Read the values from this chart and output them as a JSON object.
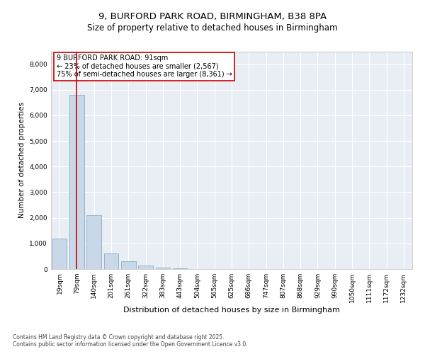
{
  "title_line1": "9, BURFORD PARK ROAD, BIRMINGHAM, B38 8PA",
  "title_line2": "Size of property relative to detached houses in Birmingham",
  "xlabel": "Distribution of detached houses by size in Birmingham",
  "ylabel": "Number of detached properties",
  "categories": [
    "19sqm",
    "79sqm",
    "140sqm",
    "201sqm",
    "261sqm",
    "322sqm",
    "383sqm",
    "443sqm",
    "504sqm",
    "565sqm",
    "625sqm",
    "686sqm",
    "747sqm",
    "807sqm",
    "868sqm",
    "929sqm",
    "990sqm",
    "1050sqm",
    "1111sqm",
    "1172sqm",
    "1232sqm"
  ],
  "values": [
    1200,
    6800,
    2100,
    600,
    300,
    130,
    60,
    30,
    10,
    5,
    0,
    0,
    0,
    0,
    0,
    0,
    0,
    0,
    0,
    0,
    0
  ],
  "bar_color": "#c8d8e8",
  "bar_edge_color": "#7aa0ba",
  "vline_x": 1,
  "vline_color": "#cc0000",
  "annotation_text": "9 BURFORD PARK ROAD: 91sqm\n← 23% of detached houses are smaller (2,567)\n75% of semi-detached houses are larger (8,361) →",
  "annotation_box_color": "#cc0000",
  "ylim": [
    0,
    8500
  ],
  "yticks": [
    0,
    1000,
    2000,
    3000,
    4000,
    5000,
    6000,
    7000,
    8000
  ],
  "footer_line1": "Contains HM Land Registry data © Crown copyright and database right 2025.",
  "footer_line2": "Contains public sector information licensed under the Open Government Licence v3.0.",
  "bg_color": "#ffffff",
  "plot_bg_color": "#e8eef4",
  "grid_color": "#ffffff",
  "title1_fontsize": 9.5,
  "title2_fontsize": 8.5,
  "xlabel_fontsize": 8,
  "ylabel_fontsize": 7.5,
  "tick_fontsize": 6.5,
  "annotation_fontsize": 7,
  "footer_fontsize": 5.5
}
